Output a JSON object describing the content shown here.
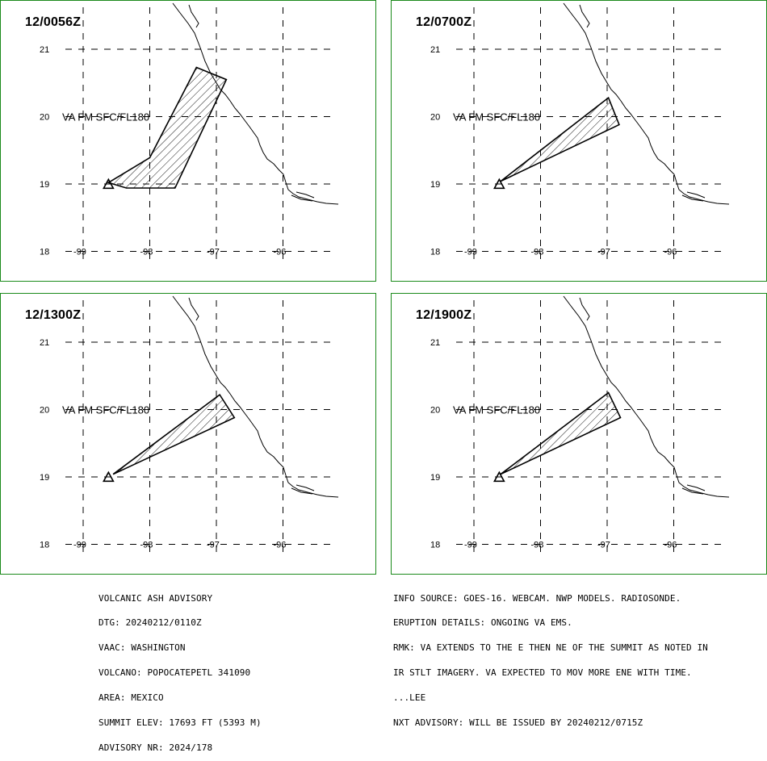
{
  "map": {
    "lat_labels": [
      "21",
      "20",
      "19",
      "18"
    ],
    "lat_values": [
      21,
      20,
      19,
      18
    ],
    "lon_labels": [
      "-99",
      "-98",
      "-97",
      "-96"
    ],
    "lon_values": [
      -99,
      -98,
      -97,
      -96
    ],
    "ash_label": "VA FM SFC/FL180",
    "volcano_symbol": "triangle",
    "volcano_position": {
      "lon": -98.62,
      "lat": 19.02
    },
    "grid_style": "dashed",
    "colors": {
      "frame": "#1a8a1a",
      "lines": "#000000",
      "background": "#ffffff"
    }
  },
  "panels": [
    {
      "time": "12/0056Z",
      "polygon": [
        [
          -98.62,
          19.02
        ],
        [
          -98.0,
          19.39
        ],
        [
          -97.3,
          20.73
        ],
        [
          -96.85,
          20.55
        ],
        [
          -97.62,
          18.94
        ],
        [
          -98.35,
          18.94
        ],
        [
          -98.62,
          19.02
        ]
      ]
    },
    {
      "time": "12/0700Z",
      "polygon": [
        [
          -98.6,
          19.04
        ],
        [
          -96.98,
          20.28
        ],
        [
          -96.82,
          19.88
        ],
        [
          -98.6,
          19.04
        ]
      ]
    },
    {
      "time": "12/1300Z",
      "polygon": [
        [
          -98.55,
          19.04
        ],
        [
          -96.95,
          20.22
        ],
        [
          -96.73,
          19.88
        ],
        [
          -98.55,
          19.04
        ]
      ]
    },
    {
      "time": "12/1900Z",
      "polygon": [
        [
          -98.6,
          19.04
        ],
        [
          -96.98,
          20.25
        ],
        [
          -96.8,
          19.88
        ],
        [
          -98.6,
          19.04
        ]
      ]
    }
  ],
  "advisory_left": [
    "VOLCANIC ASH ADVISORY",
    "DTG: 20240212/0110Z",
    "VAAC: WASHINGTON",
    "VOLCANO: POPOCATEPETL 341090",
    "AREA: MEXICO",
    "SUMMIT ELEV: 17693 FT (5393 M)",
    "ADVISORY NR: 2024/178"
  ],
  "advisory_right": [
    "INFO SOURCE: GOES-16. WEBCAM. NWP MODELS. RADIOSONDE.",
    "ERUPTION DETAILS: ONGOING VA EMS.",
    "RMK: VA EXTENDS TO THE E THEN NE OF THE SUMMIT AS NOTED IN",
    "IR STLT IMAGERY. VA EXPECTED TO MOV MORE ENE WITH TIME.",
    "...LEE",
    "NXT ADVISORY: WILL BE ISSUED BY 20240212/0715Z"
  ]
}
